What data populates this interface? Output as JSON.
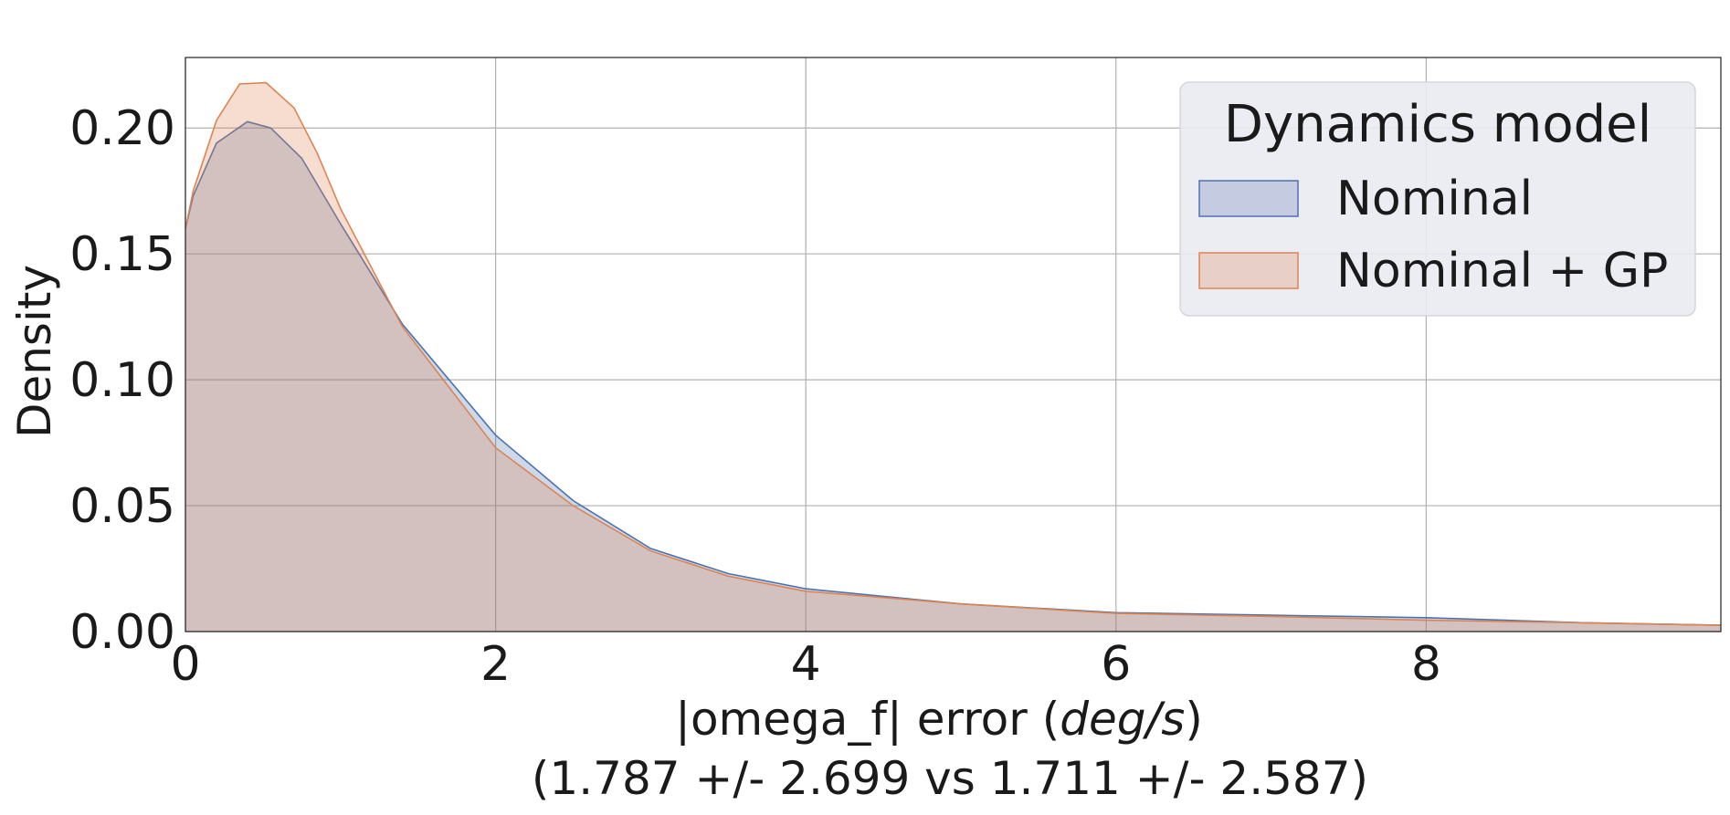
{
  "chart_data": {
    "type": "area",
    "title": "",
    "xlabel": {
      "prefix": "|omega_f| error (",
      "unit": "deg/s",
      "suffix": ")",
      "stats": "(1.787 +/- 2.699 vs 1.711 +/- 2.587)"
    },
    "ylabel": "Density",
    "xlim": [
      0,
      9.9
    ],
    "ylim": [
      0,
      0.228
    ],
    "xticks": [
      0,
      2,
      4,
      6,
      8
    ],
    "yticks": [
      0.0,
      0.05,
      0.1,
      0.15,
      0.2
    ],
    "xtick_labels": [
      "0",
      "2",
      "4",
      "6",
      "8"
    ],
    "ytick_labels": [
      "0.00",
      "0.05",
      "0.10",
      "0.15",
      "0.20"
    ],
    "grid": true,
    "legend": {
      "title": "Dynamics model",
      "placement": "top-right"
    },
    "series": [
      {
        "name": "Nominal",
        "color": "#4c72b0",
        "fill": "#c5cce2",
        "x": [
          0,
          0.05,
          0.2,
          0.4,
          0.55,
          0.75,
          1.0,
          1.4,
          2.0,
          2.5,
          3.0,
          3.5,
          4.0,
          5.0,
          6.0,
          7.0,
          8.0,
          9.0,
          9.9
        ],
        "y": [
          0.16,
          0.173,
          0.194,
          0.2025,
          0.2,
          0.188,
          0.162,
          0.122,
          0.078,
          0.052,
          0.033,
          0.023,
          0.017,
          0.011,
          0.0075,
          0.0065,
          0.0055,
          0.0035,
          0.0025
        ]
      },
      {
        "name": "Nominal + GP",
        "color": "#dd8452",
        "fill": "#e8d0c8",
        "x": [
          0,
          0.05,
          0.2,
          0.35,
          0.52,
          0.7,
          0.85,
          1.0,
          1.4,
          2.0,
          2.5,
          3.0,
          3.5,
          4.0,
          5.0,
          6.0,
          7.0,
          8.0,
          9.0,
          9.9
        ],
        "y": [
          0.16,
          0.175,
          0.203,
          0.2175,
          0.218,
          0.208,
          0.19,
          0.168,
          0.121,
          0.073,
          0.05,
          0.032,
          0.022,
          0.016,
          0.011,
          0.0072,
          0.006,
          0.0045,
          0.0035,
          0.0025
        ]
      }
    ]
  }
}
